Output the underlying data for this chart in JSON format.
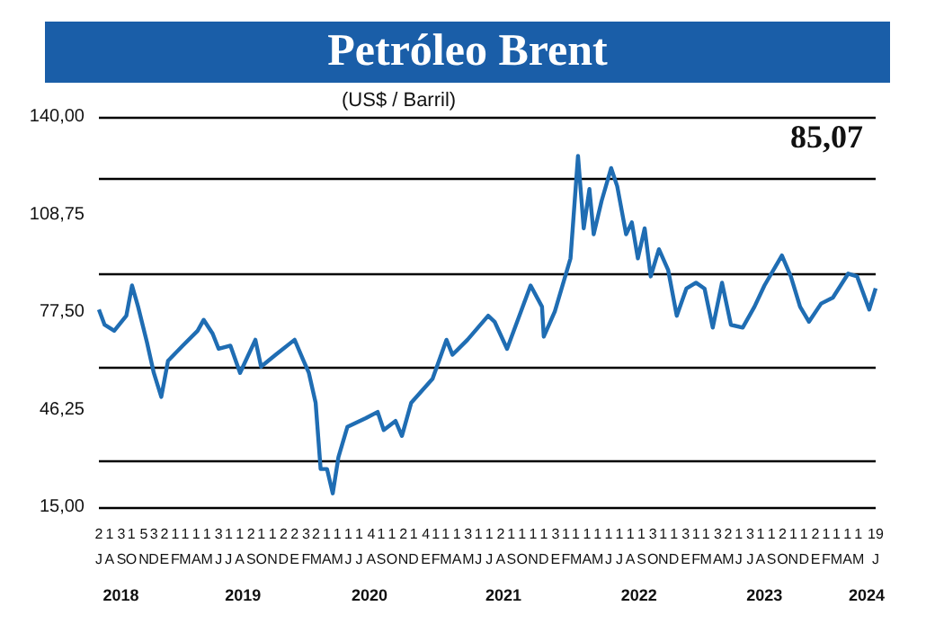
{
  "chart_data": {
    "type": "line",
    "title": "Petróleo Brent",
    "subtitle": "(US$ / Barril)",
    "annotations": [
      "85,07"
    ],
    "x": [
      "2018-07-02",
      "2018-07-18",
      "2018-08-14",
      "2018-09-17",
      "2018-10-03",
      "2018-10-20",
      "2018-11-14",
      "2018-12-03",
      "2018-12-24",
      "2019-01-12",
      "2019-02-22",
      "2019-04-05",
      "2019-04-22",
      "2019-05-17",
      "2019-06-03",
      "2019-07-06",
      "2019-08-02",
      "2019-09-14",
      "2019-09-30",
      "2019-11-10",
      "2020-01-02",
      "2020-01-27",
      "2020-02-11",
      "2020-03-01",
      "2020-03-15",
      "2020-04-02",
      "2020-04-18",
      "2020-05-04",
      "2020-05-29",
      "2020-07-20",
      "2020-08-22",
      "2020-09-08",
      "2020-10-11",
      "2020-10-29",
      "2020-11-24",
      "2021-01-23",
      "2021-03-03",
      "2021-03-20",
      "2021-05-01",
      "2021-06-28",
      "2021-07-16",
      "2021-08-20",
      "2021-10-25",
      "2021-11-26",
      "2021-12-01",
      "2022-01-01",
      "2022-02-14",
      "2022-03-07",
      "2022-03-23",
      "2022-04-08",
      "2022-04-20",
      "2022-05-12",
      "2022-06-08",
      "2022-06-25",
      "2022-07-20",
      "2022-08-05",
      "2022-08-22",
      "2022-09-10",
      "2022-09-27",
      "2022-10-20",
      "2022-11-15",
      "2022-12-09",
      "2023-01-05",
      "2023-02-01",
      "2023-02-25",
      "2023-03-20",
      "2023-04-15",
      "2023-05-10",
      "2023-06-12",
      "2023-07-15",
      "2023-08-12",
      "2023-09-30",
      "2023-10-25",
      "2023-11-20",
      "2023-12-15",
      "2024-01-18",
      "2024-02-20",
      "2024-04-03",
      "2024-04-28",
      "2024-06-01",
      "2024-06-19"
    ],
    "series": [
      {
        "color": "#1f6db3",
        "values": [
          78.3,
          73.4,
          71.5,
          76.3,
          86,
          79.2,
          67.7,
          58,
          50.3,
          61.9,
          66.7,
          71.5,
          75,
          70.6,
          65.7,
          66.7,
          58,
          68.6,
          60,
          63.8,
          68.6,
          61.9,
          58,
          48.4,
          27.2,
          27.2,
          19.4,
          31,
          40.7,
          43.5,
          45.5,
          39.7,
          42.6,
          37.8,
          48.4,
          56.1,
          68.6,
          63.8,
          68.6,
          76.3,
          74.4,
          65.7,
          86,
          79.2,
          69.6,
          77.7,
          94.7,
          127.5,
          104.3,
          116.9,
          102.4,
          113,
          123.6,
          117.8,
          102.4,
          106.2,
          94.7,
          104.3,
          88.9,
          97.6,
          90.9,
          76.3,
          85,
          86.9,
          85,
          72.5,
          86.9,
          73.4,
          72.5,
          79.2,
          86,
          95.6,
          88.9,
          79.2,
          74.4,
          80.2,
          82.1,
          89.8,
          88.9,
          78.3,
          85.1
        ]
      }
    ],
    "ylim": [
      15,
      140
    ],
    "yticks": [
      {
        "value": 15,
        "label": "15,00"
      },
      {
        "value": 46.25,
        "label": "46,25"
      },
      {
        "value": 77.5,
        "label": "77,50"
      },
      {
        "value": 108.75,
        "label": "108,75"
      },
      {
        "value": 140,
        "label": "140,00"
      }
    ],
    "xlim": [
      "2018-07-02",
      "2024-06-19"
    ],
    "xticks": [
      {
        "value": "2018-07-02",
        "label": "2\nJ"
      },
      {
        "value": "2018-08-01",
        "label": "1\nA"
      },
      {
        "value": "2018-09-03",
        "label": "3\nS"
      },
      {
        "value": "2018-10-01",
        "label": "1\nO"
      },
      {
        "value": "2018-11-05",
        "label": "5\nN"
      },
      {
        "value": "2018-12-03",
        "label": "3\nD"
      },
      {
        "value": "2019-01-02",
        "label": "2\nE"
      },
      {
        "value": "2019-02-01",
        "label": "1\nF"
      },
      {
        "value": "2019-03-01",
        "label": "1\nM"
      },
      {
        "value": "2019-04-01",
        "label": "1\nA"
      },
      {
        "value": "2019-05-01",
        "label": "1\nM"
      },
      {
        "value": "2019-06-03",
        "label": "3\nJ"
      },
      {
        "value": "2019-07-01",
        "label": "1\nJ"
      },
      {
        "value": "2019-08-01",
        "label": "1\nA"
      },
      {
        "value": "2019-09-02",
        "label": "2\nS"
      },
      {
        "value": "2019-10-01",
        "label": "1\nO"
      },
      {
        "value": "2019-11-01",
        "label": "1\nN"
      },
      {
        "value": "2019-12-02",
        "label": "2\nD"
      },
      {
        "value": "2020-01-02",
        "label": "2\nE"
      },
      {
        "value": "2020-02-03",
        "label": "3\nF"
      },
      {
        "value": "2020-03-02",
        "label": "2\nM"
      },
      {
        "value": "2020-04-01",
        "label": "1\nA"
      },
      {
        "value": "2020-05-01",
        "label": "1\nM"
      },
      {
        "value": "2020-06-01",
        "label": "1\nJ"
      },
      {
        "value": "2020-07-01",
        "label": "1\nJ"
      },
      {
        "value": "2020-08-04",
        "label": "4\nA"
      },
      {
        "value": "2020-09-01",
        "label": "1\nS"
      },
      {
        "value": "2020-10-01",
        "label": "1\nO"
      },
      {
        "value": "2020-11-02",
        "label": "2\nN"
      },
      {
        "value": "2020-12-01",
        "label": "1\nD"
      },
      {
        "value": "2021-01-04",
        "label": "4\nE"
      },
      {
        "value": "2021-02-01",
        "label": "1\nF"
      },
      {
        "value": "2021-03-01",
        "label": "1\nM"
      },
      {
        "value": "2021-04-01",
        "label": "1\nA"
      },
      {
        "value": "2021-05-03",
        "label": "3\nM"
      },
      {
        "value": "2021-06-01",
        "label": "1\nJ"
      },
      {
        "value": "2021-07-01",
        "label": "1\nJ"
      },
      {
        "value": "2021-08-02",
        "label": "2\nA"
      },
      {
        "value": "2021-09-01",
        "label": "1\nS"
      },
      {
        "value": "2021-10-01",
        "label": "1\nO"
      },
      {
        "value": "2021-11-01",
        "label": "1\nN"
      },
      {
        "value": "2021-12-01",
        "label": "1\nD"
      },
      {
        "value": "2022-01-03",
        "label": "3\nE"
      },
      {
        "value": "2022-02-01",
        "label": "1\nF"
      },
      {
        "value": "2022-03-01",
        "label": "1\nM"
      },
      {
        "value": "2022-04-01",
        "label": "1\nA"
      },
      {
        "value": "2022-05-01",
        "label": "1\nM"
      },
      {
        "value": "2022-06-01",
        "label": "1\nJ"
      },
      {
        "value": "2022-07-01",
        "label": "1\nJ"
      },
      {
        "value": "2022-08-01",
        "label": "1\nA"
      },
      {
        "value": "2022-09-01",
        "label": "1\nS"
      },
      {
        "value": "2022-10-03",
        "label": "3\nO"
      },
      {
        "value": "2022-11-01",
        "label": "1\nN"
      },
      {
        "value": "2022-12-01",
        "label": "1\nD"
      },
      {
        "value": "2023-01-03",
        "label": "3\nE"
      },
      {
        "value": "2023-02-01",
        "label": "1\nF"
      },
      {
        "value": "2023-03-01",
        "label": "1\nM"
      },
      {
        "value": "2023-04-03",
        "label": "3\nA"
      },
      {
        "value": "2023-05-02",
        "label": "2\nM"
      },
      {
        "value": "2023-06-01",
        "label": "1\nJ"
      },
      {
        "value": "2023-07-03",
        "label": "3\nJ"
      },
      {
        "value": "2023-08-01",
        "label": "1\nA"
      },
      {
        "value": "2023-09-01",
        "label": "1\nS"
      },
      {
        "value": "2023-10-02",
        "label": "2\nO"
      },
      {
        "value": "2023-11-01",
        "label": "1\nN"
      },
      {
        "value": "2023-12-01",
        "label": "1\nD"
      },
      {
        "value": "2024-01-02",
        "label": "2\nE"
      },
      {
        "value": "2024-02-01",
        "label": "1\nF"
      },
      {
        "value": "2024-03-01",
        "label": "1\nM"
      },
      {
        "value": "2024-04-01",
        "label": "1\nA"
      },
      {
        "value": "2024-05-01",
        "label": "1\nM"
      },
      {
        "value": "2024-06-19",
        "label": "19\nJ"
      }
    ],
    "x2lim": [
      "2018-07-02",
      "2024-06-19"
    ],
    "x2ticks": [
      {
        "value": "2018-09-02",
        "label": "2018"
      },
      {
        "value": "2019-08-10",
        "label": "2019"
      },
      {
        "value": "2020-07-30",
        "label": "2020"
      },
      {
        "value": "2021-08-10",
        "label": "2021"
      },
      {
        "value": "2022-08-25",
        "label": "2022"
      },
      {
        "value": "2023-08-12",
        "label": "2023"
      },
      {
        "value": "2024-05-25",
        "label": "2024"
      }
    ],
    "grid": "y",
    "marker": "none",
    "line_style": "solid"
  }
}
